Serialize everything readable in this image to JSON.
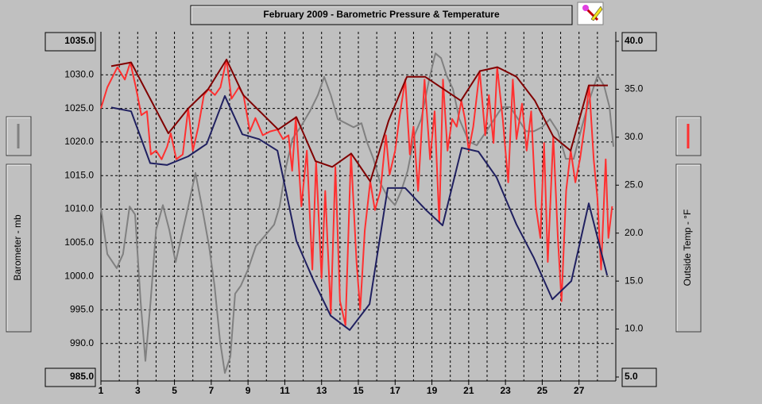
{
  "chart_data": {
    "type": "line",
    "title": "February 2009 - Barometric Pressure & Temperature",
    "ylabel": "Barometer - mb",
    "y2label": "Outside Temp - °F",
    "xlim": [
      1,
      29
    ],
    "xticks": [
      1,
      3,
      5,
      7,
      9,
      11,
      13,
      15,
      17,
      19,
      21,
      23,
      25,
      27
    ],
    "x_minor_ticks": [
      2,
      4,
      6,
      8,
      10,
      12,
      14,
      16,
      18,
      20,
      22,
      24,
      26,
      28
    ],
    "ylim": [
      985,
      1035
    ],
    "yticks": [
      {
        "value": 985,
        "label": "985.0"
      },
      {
        "value": 990,
        "label": "990.0"
      },
      {
        "value": 995,
        "label": "995.0"
      },
      {
        "value": 1000,
        "label": "1000.0"
      },
      {
        "value": 1005,
        "label": "1005.0"
      },
      {
        "value": 1010,
        "label": "1010.0"
      },
      {
        "value": 1015,
        "label": "1015.0"
      },
      {
        "value": 1020,
        "label": "1020.0"
      },
      {
        "value": 1025,
        "label": "1025.0"
      },
      {
        "value": 1030,
        "label": "1030.0"
      },
      {
        "value": 1035,
        "label": "1035.0"
      }
    ],
    "y2lim": [
      5,
      40
    ],
    "y2ticks": [
      {
        "value": 5,
        "label": "5.0"
      },
      {
        "value": 10,
        "label": "10.0"
      },
      {
        "value": 15,
        "label": "15.0"
      },
      {
        "value": 20,
        "label": "20.0"
      },
      {
        "value": 25,
        "label": "25.0"
      },
      {
        "value": 30,
        "label": "30.0"
      },
      {
        "value": 35,
        "label": "35.0"
      },
      {
        "value": 40,
        "label": "40.0"
      }
    ],
    "grid": true,
    "series": [
      {
        "color": "#808080",
        "axis": "y",
        "x": [
          1,
          1.35,
          1.86,
          2.2,
          2.56,
          2.86,
          3.16,
          3.42,
          3.7,
          4.0,
          4.37,
          4.72,
          5.06,
          5.36,
          5.75,
          6.14,
          6.49,
          6.88,
          7.18,
          7.48,
          7.74,
          8.04,
          8.3,
          8.61,
          9.0,
          9.43,
          10.0,
          10.42,
          10.72,
          11.07,
          11.42,
          11.85,
          12.37,
          12.8,
          13.14,
          13.5,
          13.88,
          14.31,
          14.74,
          15.17,
          15.48,
          15.82,
          16.17,
          16.6,
          16.99,
          17.34,
          17.68,
          18.07,
          18.42,
          18.85,
          19.19,
          19.5,
          19.8,
          20.14,
          20.49,
          21.0,
          21.44,
          21.96,
          22.39,
          22.82,
          23.26,
          23.69,
          24.12,
          24.55,
          24.98,
          25.42,
          25.85,
          26.28,
          26.71,
          27.15,
          27.58,
          28.01,
          28.36,
          28.66,
          28.87
        ],
        "values": [
          1010.2,
          1003.3,
          1001.2,
          1003.3,
          1010.4,
          1009.2,
          996.2,
          987.4,
          996.2,
          1006.9,
          1010.6,
          1006.9,
          1002.1,
          1005.7,
          1010.4,
          1015.4,
          1010.4,
          1004.5,
          998.6,
          990.3,
          985.6,
          988.0,
          997.4,
          998.6,
          1001.0,
          1004.5,
          1006.3,
          1007.7,
          1010.4,
          1016.3,
          1020.5,
          1022.2,
          1024.6,
          1027.0,
          1029.7,
          1027.0,
          1023.4,
          1022.8,
          1022.2,
          1022.8,
          1019.9,
          1017.5,
          1014.0,
          1011.8,
          1010.6,
          1012.8,
          1015.7,
          1021.1,
          1023.4,
          1029.3,
          1033.2,
          1032.5,
          1029.9,
          1027.9,
          1023.4,
          1020.1,
          1019.5,
          1021.6,
          1023.4,
          1025.2,
          1025.2,
          1023.4,
          1021.6,
          1021.6,
          1022.2,
          1023.4,
          1021.6,
          1017.5,
          1017.5,
          1022.2,
          1026.4,
          1029.9,
          1028.4,
          1025.2,
          1019.3
        ]
      },
      {
        "color": "#ff3030",
        "axis": "y2",
        "x": [
          1.0,
          1.35,
          1.9,
          2.3,
          2.6,
          2.9,
          3.2,
          3.5,
          3.72,
          4.0,
          4.3,
          4.6,
          4.8,
          5.1,
          5.45,
          5.75,
          6.0,
          6.3,
          6.6,
          6.85,
          7.2,
          7.5,
          7.83,
          8.1,
          8.5,
          8.75,
          9.1,
          9.4,
          9.8,
          10.2,
          10.6,
          10.9,
          11.2,
          11.4,
          11.6,
          11.9,
          12.2,
          12.5,
          12.7,
          13.0,
          13.2,
          13.5,
          13.75,
          14.0,
          14.3,
          14.6,
          14.9,
          15.1,
          15.35,
          15.65,
          15.9,
          16.2,
          16.5,
          16.7,
          17.0,
          17.25,
          17.55,
          17.8,
          18.0,
          18.25,
          18.6,
          18.9,
          19.15,
          19.4,
          19.6,
          19.85,
          20.1,
          20.35,
          20.6,
          20.8,
          21.0,
          21.25,
          21.6,
          21.9,
          22.1,
          22.35,
          22.55,
          22.85,
          23.15,
          23.4,
          23.6,
          23.9,
          24.15,
          24.4,
          24.65,
          24.9,
          25.1,
          25.3,
          25.6,
          25.85,
          26.05,
          26.3,
          26.55,
          26.8,
          27.05,
          27.3,
          27.55,
          27.8,
          28.0,
          28.2,
          28.45,
          28.6,
          28.8
        ],
        "values": [
          33.0,
          35.2,
          37.3,
          36.0,
          37.8,
          35.2,
          32.3,
          32.7,
          28.2,
          28.6,
          27.7,
          29.0,
          30.4,
          27.7,
          28.2,
          33.0,
          28.6,
          31.1,
          34.4,
          35.0,
          34.4,
          35.2,
          38.1,
          34.0,
          35.2,
          34.4,
          30.6,
          32.0,
          30.2,
          30.6,
          30.8,
          29.8,
          30.2,
          26.5,
          32.1,
          22.8,
          28.6,
          16.2,
          27.5,
          15.3,
          24.4,
          11.6,
          26.9,
          12.9,
          10.4,
          28.3,
          17.0,
          12.0,
          20.3,
          25.4,
          22.4,
          24.4,
          30.2,
          26.1,
          28.6,
          32.3,
          36.0,
          28.2,
          31.1,
          24.4,
          36.0,
          27.7,
          32.7,
          21.1,
          36.0,
          28.6,
          31.9,
          31.1,
          33.8,
          31.9,
          28.6,
          31.1,
          36.9,
          30.2,
          34.4,
          29.4,
          37.3,
          31.9,
          25.3,
          36.0,
          29.8,
          33.5,
          28.6,
          32.7,
          22.8,
          19.5,
          29.4,
          17.0,
          30.1,
          19.5,
          12.9,
          24.4,
          28.6,
          25.3,
          27.7,
          31.1,
          35.4,
          27.7,
          23.6,
          16.2,
          27.7,
          19.5,
          22.8
        ]
      },
      {
        "color": "#800000",
        "axis": "y2",
        "x": [
          1.56,
          2.64,
          4.67,
          5.75,
          6.83,
          7.83,
          8.74,
          10.64,
          11.63,
          12.67,
          13.58,
          14.61,
          15.65,
          16.64,
          17.64,
          18.63,
          20.58,
          21.61,
          22.56,
          23.6,
          24.6,
          25.59,
          26.54,
          27.53,
          28.57
        ],
        "values": [
          37.4,
          37.8,
          30.4,
          33.0,
          35.0,
          38.1,
          34.4,
          30.8,
          32.1,
          27.5,
          26.9,
          28.3,
          25.4,
          31.7,
          36.3,
          36.3,
          33.8,
          36.9,
          37.3,
          36.3,
          33.8,
          30.1,
          28.6,
          35.4,
          35.4
        ]
      },
      {
        "color": "#202060",
        "axis": "y2",
        "x": [
          1.56,
          2.64,
          3.68,
          4.59,
          5.75,
          6.75,
          7.74,
          8.69,
          9.6,
          10.6,
          11.63,
          12.58,
          13.49,
          14.53,
          15.61,
          16.6,
          17.55,
          18.68,
          19.58,
          20.62,
          21.53,
          22.52,
          23.6,
          24.55,
          25.55,
          26.58,
          27.53,
          28.53
        ],
        "values": [
          33.1,
          32.7,
          27.3,
          27.1,
          28.0,
          29.3,
          34.3,
          30.3,
          29.8,
          28.6,
          19.2,
          15.0,
          11.4,
          9.9,
          12.6,
          24.7,
          24.7,
          22.4,
          20.8,
          28.9,
          28.5,
          25.8,
          20.9,
          17.4,
          13.1,
          15.0,
          23.1,
          15.6
        ]
      }
    ]
  }
}
